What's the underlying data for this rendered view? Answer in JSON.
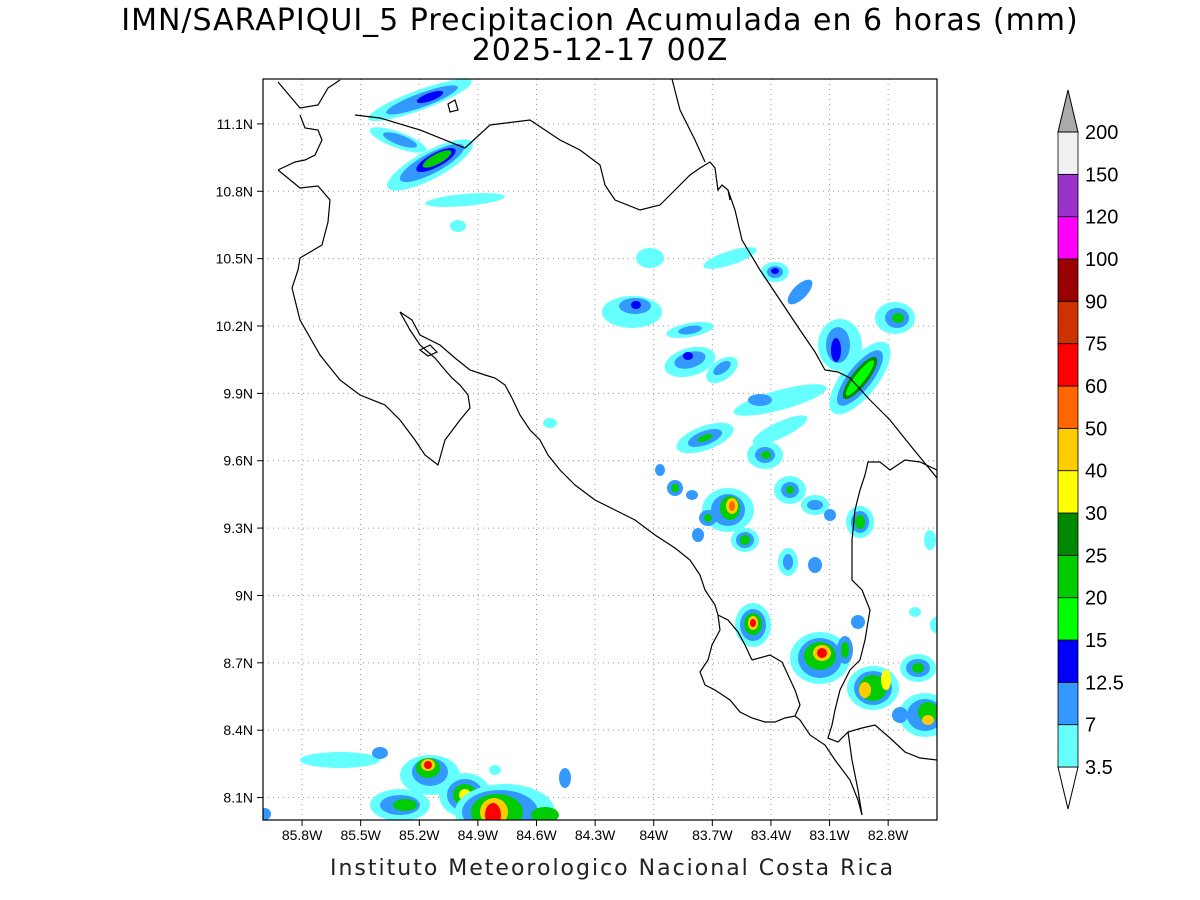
{
  "title": {
    "line1": "IMN/SARAPIQUI_5 Precipitacion Acumulada en 6 horas (mm)",
    "line2": "2025-12-17 00Z"
  },
  "footer": "Instituto Meteorologico Nacional Costa Rica",
  "map": {
    "lon_range": [
      -86.0,
      -82.55
    ],
    "lat_range": [
      8.0,
      11.3
    ],
    "grid": true,
    "lat_ticks": [
      "11.1N",
      "10.8N",
      "10.5N",
      "10.2N",
      "9.9N",
      "9.6N",
      "9.3N",
      "9N",
      "8.7N",
      "8.4N",
      "8.1N"
    ],
    "lon_ticks": [
      "85.8W",
      "85.5W",
      "85.2W",
      "84.9W",
      "84.6W",
      "84.3W",
      "84W",
      "83.7W",
      "83.4W",
      "83.1W",
      "82.8W"
    ]
  },
  "colorbar": {
    "unit": "mm",
    "levels": [
      {
        "label": "3.5",
        "color": "#66ffff"
      },
      {
        "label": "7",
        "color": "#3399ff"
      },
      {
        "label": "12.5",
        "color": "#0000ff"
      },
      {
        "label": "15",
        "color": "#00ff00"
      },
      {
        "label": "20",
        "color": "#00cc00"
      },
      {
        "label": "25",
        "color": "#008800"
      },
      {
        "label": "30",
        "color": "#ffff00"
      },
      {
        "label": "40",
        "color": "#ffcc00"
      },
      {
        "label": "50",
        "color": "#ff6600"
      },
      {
        "label": "60",
        "color": "#ff0000"
      },
      {
        "label": "75",
        "color": "#cc3300"
      },
      {
        "label": "90",
        "color": "#990000"
      },
      {
        "label": "100",
        "color": "#ff00ff"
      },
      {
        "label": "120",
        "color": "#9933cc"
      },
      {
        "label": "150",
        "color": "#f0f0f0"
      },
      {
        "label": "200",
        "color": "#aaaaaa"
      }
    ]
  }
}
